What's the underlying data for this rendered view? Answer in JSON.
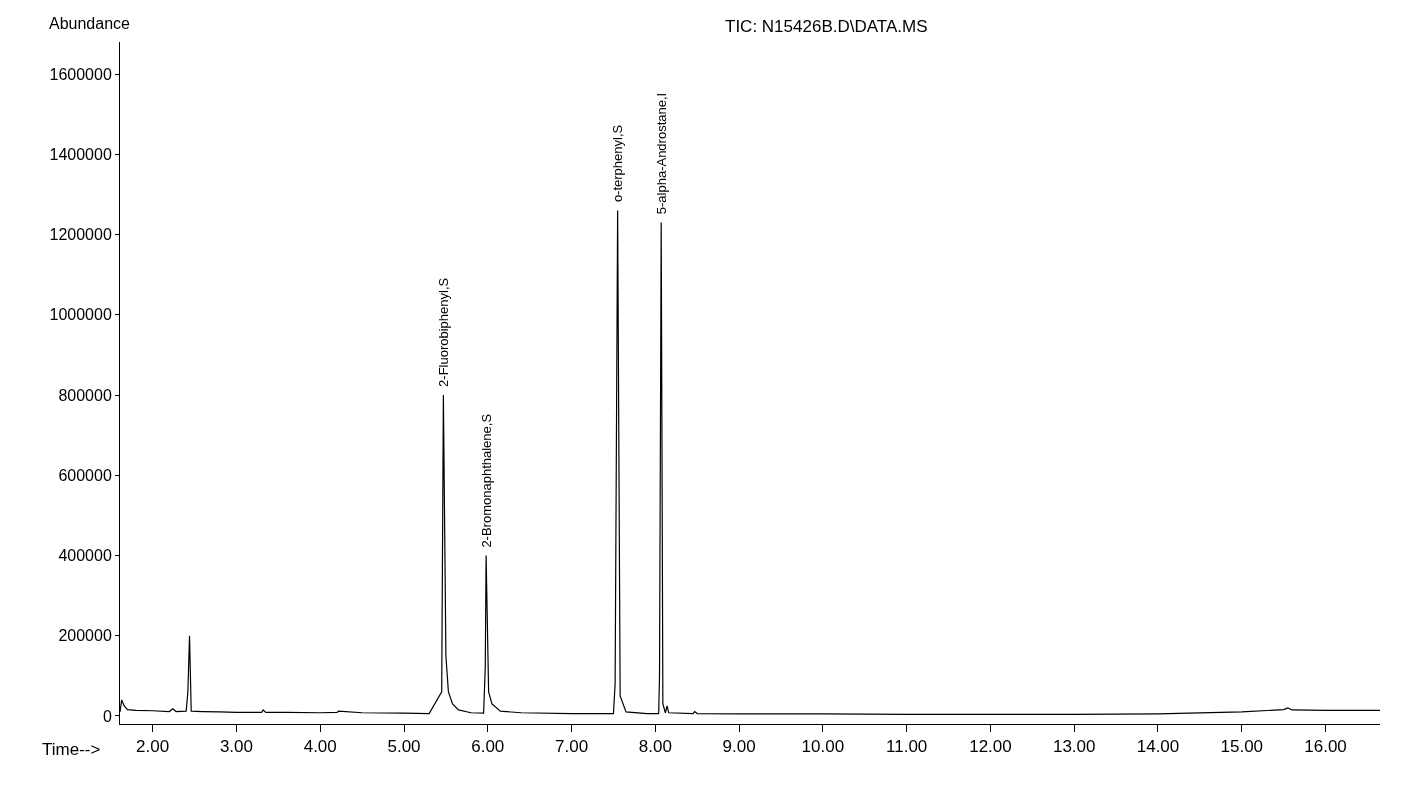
{
  "chart_data": {
    "type": "line",
    "title": "TIC: N15426B.D\\DATA.MS",
    "xlabel": "Time-->",
    "ylabel": "Abundance",
    "x": [
      1.61,
      1.63,
      1.66,
      1.7,
      1.8,
      2.0,
      2.2,
      2.24,
      2.28,
      2.4,
      2.42,
      2.44,
      2.46,
      2.6,
      2.8,
      3.0,
      3.3,
      3.32,
      3.35,
      3.6,
      4.0,
      4.2,
      4.22,
      4.5,
      5.0,
      5.3,
      5.45,
      5.47,
      5.5,
      5.53,
      5.58,
      5.65,
      5.8,
      5.95,
      5.97,
      5.98,
      6.01,
      6.05,
      6.15,
      6.4,
      7.0,
      7.5,
      7.52,
      7.55,
      7.58,
      7.65,
      7.9,
      8.04,
      8.05,
      8.07,
      8.09,
      8.12,
      8.14,
      8.16,
      8.45,
      8.47,
      8.5,
      9.0,
      10.0,
      11.0,
      12.0,
      13.0,
      14.0,
      15.0,
      15.5,
      15.55,
      15.6,
      16.0,
      16.65
    ],
    "series": [
      {
        "color": "#000000",
        "values": [
          10000,
          40000,
          25000,
          16000,
          14000,
          13000,
          11000,
          18000,
          11000,
          12000,
          60000,
          200000,
          12000,
          11000,
          10000,
          9000,
          9000,
          15000,
          9000,
          9000,
          8000,
          9000,
          12000,
          8000,
          7000,
          6000,
          60000,
          800000,
          150000,
          60000,
          30000,
          15000,
          8000,
          7000,
          120000,
          400000,
          60000,
          30000,
          12000,
          8000,
          6000,
          6000,
          80000,
          1260000,
          50000,
          10000,
          6000,
          6000,
          100000,
          1230000,
          30000,
          8000,
          25000,
          8000,
          6000,
          11000,
          6000,
          5000,
          5000,
          4000,
          4000,
          4000,
          5000,
          10000,
          16000,
          20000,
          15000,
          14000,
          14000
        ]
      }
    ],
    "annotations": [
      {
        "text": "2-Fluorobiphenyl,S",
        "x": 5.47,
        "y": 800000
      },
      {
        "text": "2-Bromonaphthalene,S",
        "x": 5.98,
        "y": 400000
      },
      {
        "text": "o-terphenyl,S",
        "x": 7.55,
        "y": 1260000
      },
      {
        "text": "5-alpha-Androstane,I",
        "x": 8.07,
        "y": 1230000
      }
    ],
    "xlim": [
      1.61,
      16.65
    ],
    "ylim": [
      -20000,
      1680000
    ],
    "xticks": [
      {
        "value": 2,
        "label": "2.00"
      },
      {
        "value": 3,
        "label": "3.00"
      },
      {
        "value": 4,
        "label": "4.00"
      },
      {
        "value": 5,
        "label": "5.00"
      },
      {
        "value": 6,
        "label": "6.00"
      },
      {
        "value": 7,
        "label": "7.00"
      },
      {
        "value": 8,
        "label": "8.00"
      },
      {
        "value": 9,
        "label": "9.00"
      },
      {
        "value": 10,
        "label": "10.00"
      },
      {
        "value": 11,
        "label": "11.00"
      },
      {
        "value": 12,
        "label": "12.00"
      },
      {
        "value": 13,
        "label": "13.00"
      },
      {
        "value": 14,
        "label": "14.00"
      },
      {
        "value": 15,
        "label": "15.00"
      },
      {
        "value": 16,
        "label": "16.00"
      }
    ],
    "yticks": [
      0,
      200000,
      400000,
      600000,
      800000,
      1000000,
      1200000,
      1400000,
      1600000
    ],
    "marker": "none",
    "line_style": "solid"
  }
}
